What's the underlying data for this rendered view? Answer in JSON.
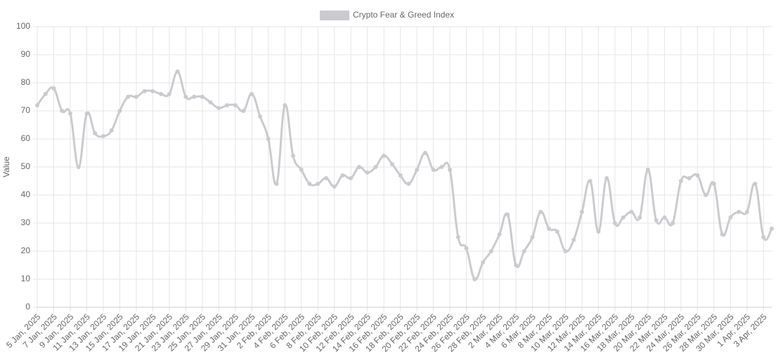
{
  "chart_data": {
    "type": "line",
    "y_label": "Value",
    "categories": [
      "5 Jan, 2025",
      null,
      "7 Jan, 2025",
      null,
      "9 Jan, 2025",
      null,
      "11 Jan, 2025",
      null,
      "13 Jan, 2025",
      null,
      "15 Jan, 2025",
      null,
      "17 Jan, 2025",
      null,
      "19 Jan, 2025",
      null,
      "21 Jan, 2025",
      null,
      "23 Jan, 2025",
      null,
      "25 Jan, 2025",
      null,
      "27 Jan, 2025",
      null,
      "29 Jan, 2025",
      null,
      "31 Jan, 2025",
      null,
      "2 Feb, 2025",
      null,
      "4 Feb, 2025",
      null,
      "6 Feb, 2025",
      null,
      "8 Feb, 2025",
      null,
      "10 Feb, 2025",
      null,
      "12 Feb, 2025",
      null,
      "14 Feb, 2025",
      null,
      "16 Feb, 2025",
      null,
      "18 Feb, 2025",
      null,
      "20 Feb, 2025",
      null,
      "22 Feb, 2025",
      null,
      "24 Feb, 2025",
      null,
      "26 Feb, 2025",
      null,
      "28 Feb, 2025",
      null,
      "2 Mar, 2025",
      null,
      "4 Mar, 2025",
      null,
      "6 Mar, 2025",
      null,
      "8 Mar, 2025",
      null,
      "10 Mar, 2025",
      null,
      "12 Mar, 2025",
      null,
      "14 Mar, 2025",
      null,
      "16 Mar, 2025",
      null,
      "18 Mar, 2025",
      null,
      "20 Mar, 2025",
      null,
      "22 Mar, 2025",
      null,
      "24 Mar, 2025",
      null,
      "26 Mar, 2025",
      null,
      "28 Mar, 2025",
      null,
      "30 Mar, 2025",
      null,
      "1 Apr, 2025",
      null,
      "3 Apr, 2025",
      null
    ],
    "series": [
      {
        "name": "Crypto Fear & Greed Index",
        "color": "#c9cbcf",
        "values": [
          72,
          76,
          78,
          70,
          69,
          50,
          69,
          62,
          61,
          63,
          70,
          75,
          75,
          77,
          77,
          76,
          76,
          84,
          75,
          75,
          75,
          73,
          71,
          72,
          72,
          70,
          76,
          68,
          60,
          44,
          72,
          54,
          49,
          44,
          44,
          46,
          43,
          47,
          46,
          50,
          48,
          50,
          54,
          51,
          47,
          44,
          49,
          55,
          49,
          50,
          49,
          25,
          21,
          10,
          16,
          20,
          26,
          33,
          15,
          20,
          25,
          34,
          28,
          27,
          20,
          24,
          34,
          45,
          27,
          46,
          30,
          32,
          34,
          32,
          49,
          31,
          32,
          30,
          45,
          46,
          47,
          40,
          44,
          26,
          32,
          34,
          34,
          44,
          25,
          28
        ]
      }
    ],
    "ylim": [
      0,
      100
    ],
    "yticks": [
      0,
      10,
      20,
      30,
      40,
      50,
      60,
      70,
      80,
      90,
      100
    ],
    "grid": true
  }
}
